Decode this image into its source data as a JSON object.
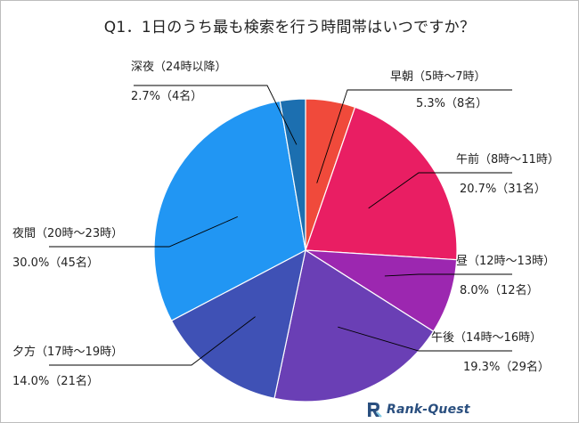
{
  "chart_data": {
    "type": "pie",
    "title": "Q1．1日のうち最も検索を行う時間帯はいつですか？",
    "slices": [
      {
        "name": "早朝（5時～7時）",
        "percent": 5.3,
        "count": 8,
        "value_label": "5.3%（8名）",
        "color": "#f04a3b"
      },
      {
        "name": "午前（8時～11時）",
        "percent": 20.7,
        "count": 31,
        "value_label": "20.7%（31名）",
        "color": "#e91e63"
      },
      {
        "name": "昼（12時～13時）",
        "percent": 8.0,
        "count": 12,
        "value_label": "8.0%（12名）",
        "color": "#9c27b0"
      },
      {
        "name": "午後（14時～16時）",
        "percent": 19.3,
        "count": 29,
        "value_label": "19.3%（29名）",
        "color": "#6a3fb5"
      },
      {
        "name": "夕方（17時～19時）",
        "percent": 14.0,
        "count": 21,
        "value_label": "14.0%（21名）",
        "color": "#3f51b5"
      },
      {
        "name": "夜間（20時～23時）",
        "percent": 30.0,
        "count": 45,
        "value_label": "30.0%（45名）",
        "color": "#2196f3"
      },
      {
        "name": "深夜（24時以降）",
        "percent": 2.7,
        "count": 4,
        "value_label": "2.7%（4名）",
        "color": "#1c6fb0"
      }
    ],
    "start_angle": "12 o'clock",
    "direction": "clockwise",
    "legend": "none"
  },
  "brand": {
    "text": "Rank-Quest",
    "icon": "rank-quest-logo-icon",
    "color": "#2a4f7f"
  }
}
